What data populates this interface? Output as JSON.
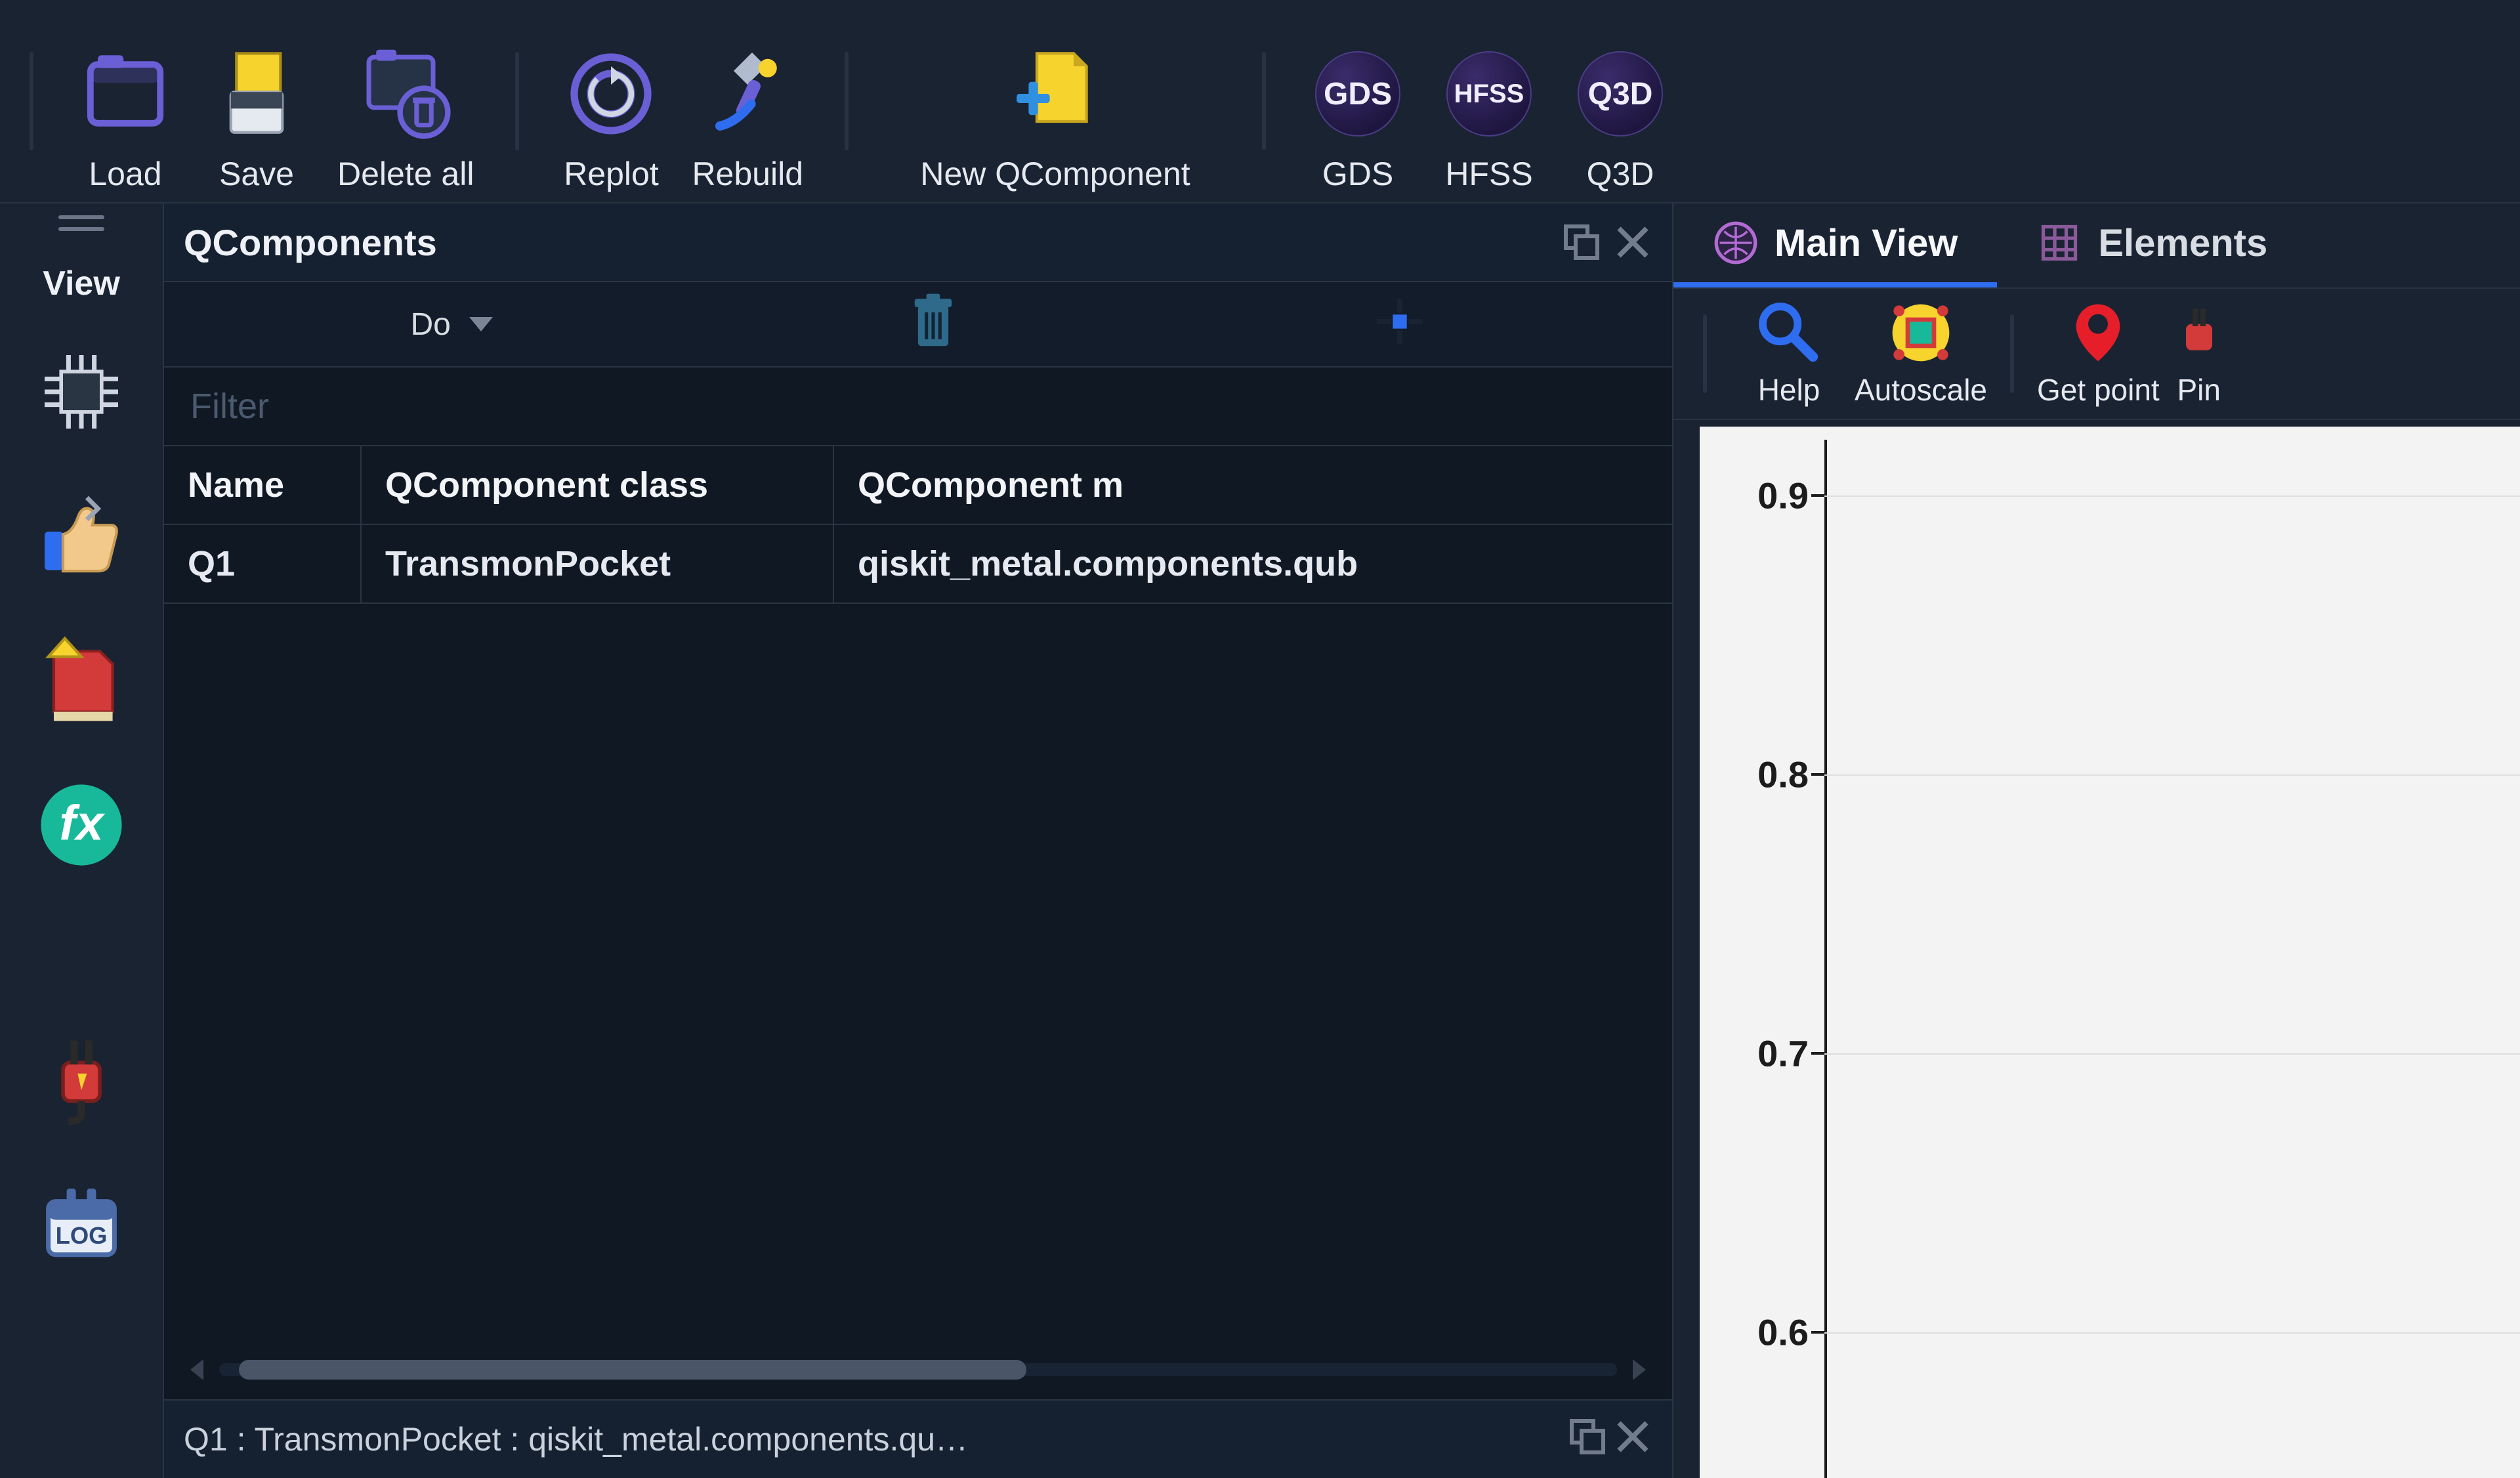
{
  "colors": {
    "bg": "#1a2332",
    "panel": "#0f1823",
    "border": "#2a3544",
    "text": "#d8dde3",
    "accent": "#2f6df0",
    "purple": "#6b5fd6",
    "orange": "#f2a53a",
    "teal": "#18b99a",
    "red": "#d33a3a",
    "yellow": "#f6d32d"
  },
  "toolbar": {
    "load": "Load",
    "save": "Save",
    "delete_all": "Delete all",
    "replot": "Replot",
    "rebuild": "Rebuild",
    "new_qc": "New QComponent",
    "gds": "GDS",
    "hfss": "HFSS",
    "q3d": "Q3D"
  },
  "viewrail": {
    "label": "View"
  },
  "qcomponents": {
    "title": "QComponents",
    "do_label": "Do",
    "filter_placeholder": "Filter",
    "columns": {
      "name": "Name",
      "class": "QComponent class",
      "mod": "QComponent m"
    },
    "rows": [
      {
        "name": "Q1",
        "class": "TransmonPocket",
        "mod": "qiskit_metal.components.qub"
      }
    ],
    "detail": "Q1   :   TransmonPocket   :   qiskit_metal.components.qu…"
  },
  "right": {
    "tabs": {
      "main": "Main View",
      "elements": "Elements"
    },
    "subtoolbar": {
      "help": "Help",
      "autoscale": "Autoscale",
      "getpoint": "Get point",
      "pin": "Pin"
    },
    "plot": {
      "background": "#f3f3f3",
      "grid_color": "#dedede",
      "axis_color": "#1c1c1c",
      "ylim": [
        0.55,
        0.92
      ],
      "yticks": [
        0.9,
        0.8,
        0.7,
        0.6
      ],
      "ylabel_fontsize": 56
    }
  }
}
